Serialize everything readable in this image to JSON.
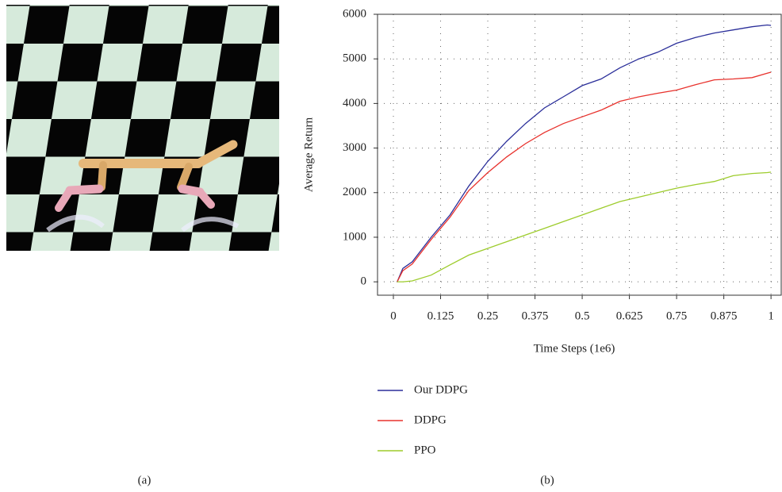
{
  "panel_labels": [
    "(a)",
    "(b)"
  ],
  "chart_data": {
    "type": "line",
    "xlabel": "Time Steps (1e6)",
    "ylabel": "Average Return",
    "x": [
      0.01,
      0.025,
      0.05,
      0.1,
      0.15,
      0.2,
      0.25,
      0.3,
      0.35,
      0.4,
      0.45,
      0.5,
      0.55,
      0.6,
      0.65,
      0.7,
      0.75,
      0.8,
      0.85,
      0.9,
      0.95,
      0.99,
      1.0
    ],
    "series": [
      {
        "name": "Our DDPG",
        "color": "#2b2f9a",
        "values": [
          0,
          300,
          450,
          1000,
          1500,
          2150,
          2700,
          3150,
          3550,
          3900,
          4150,
          4400,
          4550,
          4800,
          5000,
          5150,
          5350,
          5480,
          5580,
          5650,
          5720,
          5760,
          5750
        ]
      },
      {
        "name": "DDPG",
        "color": "#e8322d",
        "values": [
          0,
          250,
          400,
          950,
          1450,
          2050,
          2450,
          2800,
          3100,
          3350,
          3550,
          3700,
          3850,
          4050,
          4150,
          4230,
          4300,
          4420,
          4530,
          4550,
          4580,
          4680,
          4700
        ]
      },
      {
        "name": "PPO",
        "color": "#9dcc2c",
        "values": [
          0,
          0,
          20,
          150,
          380,
          600,
          750,
          900,
          1050,
          1200,
          1350,
          1500,
          1650,
          1800,
          1900,
          2000,
          2100,
          2180,
          2250,
          2380,
          2430,
          2450,
          2460
        ]
      }
    ],
    "xlim": [
      -0.042,
      1.027
    ],
    "ylim": [
      -300,
      6000
    ],
    "xticks": [
      0,
      0.125,
      0.25,
      0.375,
      0.5,
      0.625,
      0.75,
      0.875,
      1
    ],
    "yticks": [
      0,
      1000,
      2000,
      3000,
      4000,
      5000,
      6000
    ],
    "grid": true,
    "legend": "bottom"
  }
}
